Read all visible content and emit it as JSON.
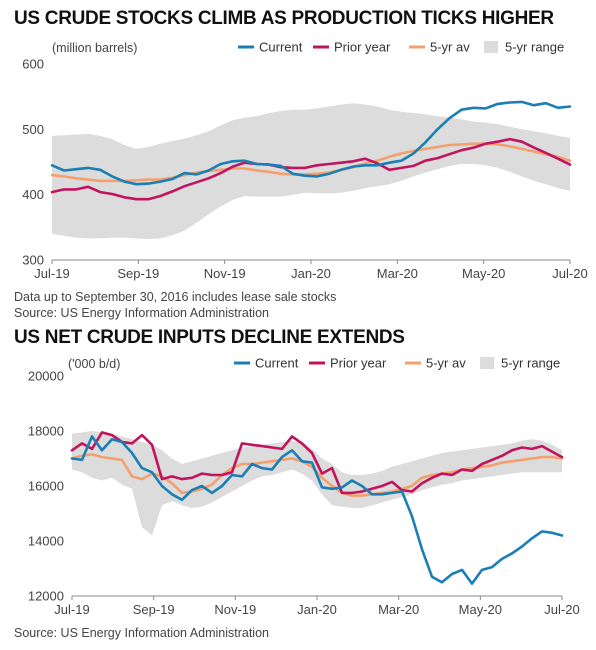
{
  "chart_data": [
    {
      "type": "line",
      "title": "US CRUDE STOCKS CLIMB AS PRODUCTION TICKS HIGHER",
      "unit_label": "(million barrels)",
      "ylim": [
        300,
        600
      ],
      "yticks": [
        300,
        400,
        500,
        600
      ],
      "x_tick_labels": [
        "Jul-19",
        "Sep-19",
        "Nov-19",
        "Jan-20",
        "Mar-20",
        "May-20",
        "Jul-20"
      ],
      "legend": [
        "Current",
        "Prior year",
        "5-yr av",
        "5-yr range"
      ],
      "legend_position": "top-right",
      "colors": {
        "current": "#1a7fb5",
        "prior": "#c0145f",
        "avg": "#f4a06e",
        "range": "#dcdcdc"
      },
      "series": [
        {
          "name": "Current",
          "values": [
            445,
            437,
            439,
            441,
            438,
            428,
            420,
            416,
            417,
            420,
            424,
            433,
            431,
            437,
            447,
            451,
            452,
            447,
            446,
            444,
            432,
            429,
            428,
            432,
            438,
            443,
            445,
            445,
            449,
            452,
            463,
            480,
            500,
            517,
            530,
            533,
            532,
            539,
            541,
            542,
            537,
            540,
            533,
            535
          ]
        },
        {
          "name": "Prior year",
          "values": [
            404,
            408,
            408,
            412,
            404,
            401,
            396,
            393,
            393,
            398,
            405,
            413,
            419,
            425,
            433,
            443,
            449,
            447,
            446,
            442,
            441,
            441,
            445,
            447,
            449,
            451,
            455,
            448,
            438,
            441,
            444,
            452,
            456,
            462,
            468,
            472,
            478,
            481,
            485,
            481,
            472,
            464,
            455,
            446
          ]
        },
        {
          "name": "5-yr av",
          "values": [
            430,
            428,
            425,
            423,
            421,
            421,
            421,
            422,
            423,
            423,
            426,
            430,
            434,
            436,
            438,
            440,
            440,
            437,
            435,
            432,
            431,
            431,
            432,
            434,
            438,
            442,
            448,
            452,
            458,
            463,
            467,
            470,
            473,
            476,
            477,
            478,
            478,
            477,
            474,
            470,
            466,
            462,
            458,
            452
          ]
        },
        {
          "name": "5-yr range",
          "low": [
            340,
            337,
            334,
            333,
            333,
            334,
            334,
            333,
            332,
            333,
            338,
            345,
            357,
            370,
            382,
            392,
            398,
            397,
            397,
            397,
            400,
            403,
            402,
            402,
            403,
            406,
            410,
            413,
            416,
            421,
            428,
            434,
            439,
            444,
            447,
            447,
            445,
            441,
            435,
            428,
            421,
            416,
            410,
            406
          ],
          "high": [
            490,
            491,
            492,
            493,
            490,
            485,
            476,
            470,
            473,
            478,
            482,
            486,
            491,
            497,
            506,
            514,
            518,
            520,
            525,
            528,
            530,
            530,
            532,
            535,
            538,
            540,
            538,
            535,
            530,
            527,
            525,
            523,
            520,
            518,
            515,
            512,
            510,
            508,
            504,
            500,
            497,
            494,
            490,
            487
          ]
        }
      ],
      "footnote": "Data up to September 30, 2016 includes lease sale stocks",
      "source": "Source: US Energy Information Administration"
    },
    {
      "type": "line",
      "title": "US NET CRUDE INPUTS DECLINE EXTENDS",
      "unit_label": "('000 b/d)",
      "ylim": [
        12000,
        20000
      ],
      "yticks": [
        12000,
        14000,
        16000,
        18000,
        20000
      ],
      "x_tick_labels": [
        "Jul-19",
        "Sep-19",
        "Nov-19",
        "Jan-20",
        "Mar-20",
        "May-20",
        "Jul-20"
      ],
      "legend": [
        "Current",
        "Prior year",
        "5-yr av",
        "5-yr range"
      ],
      "legend_position": "top-right",
      "colors": {
        "current": "#1a7fb5",
        "prior": "#c0145f",
        "avg": "#f4a06e",
        "range": "#dcdcdc"
      },
      "series": [
        {
          "name": "Current",
          "values": [
            17000,
            16950,
            17800,
            17300,
            17700,
            17600,
            17200,
            16650,
            16500,
            16000,
            15700,
            15500,
            15850,
            16000,
            15750,
            16000,
            16400,
            16350,
            16800,
            16650,
            16600,
            17050,
            17300,
            16900,
            16850,
            15950,
            15900,
            15950,
            16200,
            16000,
            15700,
            15700,
            15750,
            15800,
            14900,
            13700,
            12700,
            12500,
            12800,
            12950,
            12450,
            12950,
            13050,
            13350,
            13550,
            13800,
            14100,
            14350,
            14300,
            14200
          ]
        },
        {
          "name": "Prior year",
          "values": [
            17300,
            17550,
            17350,
            17950,
            17850,
            17600,
            17550,
            17850,
            17500,
            16250,
            16350,
            16250,
            16300,
            16450,
            16400,
            16400,
            16500,
            17550,
            17500,
            17450,
            17400,
            17350,
            17800,
            17550,
            17200,
            16450,
            16650,
            15750,
            15750,
            15800,
            15900,
            16000,
            16150,
            15850,
            15800,
            16100,
            16300,
            16450,
            16400,
            16600,
            16550,
            16800,
            16950,
            17100,
            17300,
            17400,
            17350,
            17450,
            17250,
            17050
          ]
        },
        {
          "name": "5-yr av",
          "values": [
            17000,
            17100,
            17150,
            17050,
            17000,
            16950,
            16350,
            16250,
            16450,
            16350,
            16100,
            15750,
            15800,
            15900,
            16050,
            16400,
            16650,
            16800,
            16800,
            16850,
            16900,
            16950,
            17000,
            16900,
            16700,
            16300,
            16000,
            15750,
            15650,
            15650,
            15700,
            15750,
            15800,
            15900,
            16000,
            16300,
            16400,
            16450,
            16500,
            16600,
            16650,
            16700,
            16750,
            16850,
            16900,
            16950,
            17000,
            17050,
            17050,
            17000
          ]
        },
        {
          "name": "5-yr range",
          "low": [
            16600,
            16500,
            16300,
            16200,
            16300,
            16050,
            15900,
            14500,
            14200,
            15300,
            15450,
            15300,
            15200,
            15250,
            15400,
            15600,
            15800,
            16000,
            16200,
            16350,
            16400,
            16500,
            16600,
            16450,
            16200,
            15700,
            15300,
            15250,
            15200,
            15200,
            15300,
            15400,
            15500,
            15600,
            15700,
            15850,
            15950,
            16050,
            16100,
            16200,
            16250,
            16300,
            16350,
            16400,
            16450,
            16500,
            16500,
            16500,
            16500,
            16500
          ],
          "high": [
            17900,
            17950,
            18000,
            17950,
            17900,
            17800,
            17700,
            17600,
            17500,
            17300,
            17000,
            16800,
            16900,
            17000,
            17100,
            17200,
            17300,
            17400,
            17450,
            17500,
            17550,
            17600,
            17650,
            17550,
            17350,
            17000,
            16800,
            16500,
            16400,
            16400,
            16450,
            16550,
            16700,
            16800,
            16900,
            17000,
            17100,
            17200,
            17250,
            17300,
            17350,
            17400,
            17450,
            17500,
            17550,
            17650,
            17700,
            17650,
            17500,
            17300
          ]
        }
      ],
      "source": "Source: US Energy Information Administration"
    }
  ]
}
